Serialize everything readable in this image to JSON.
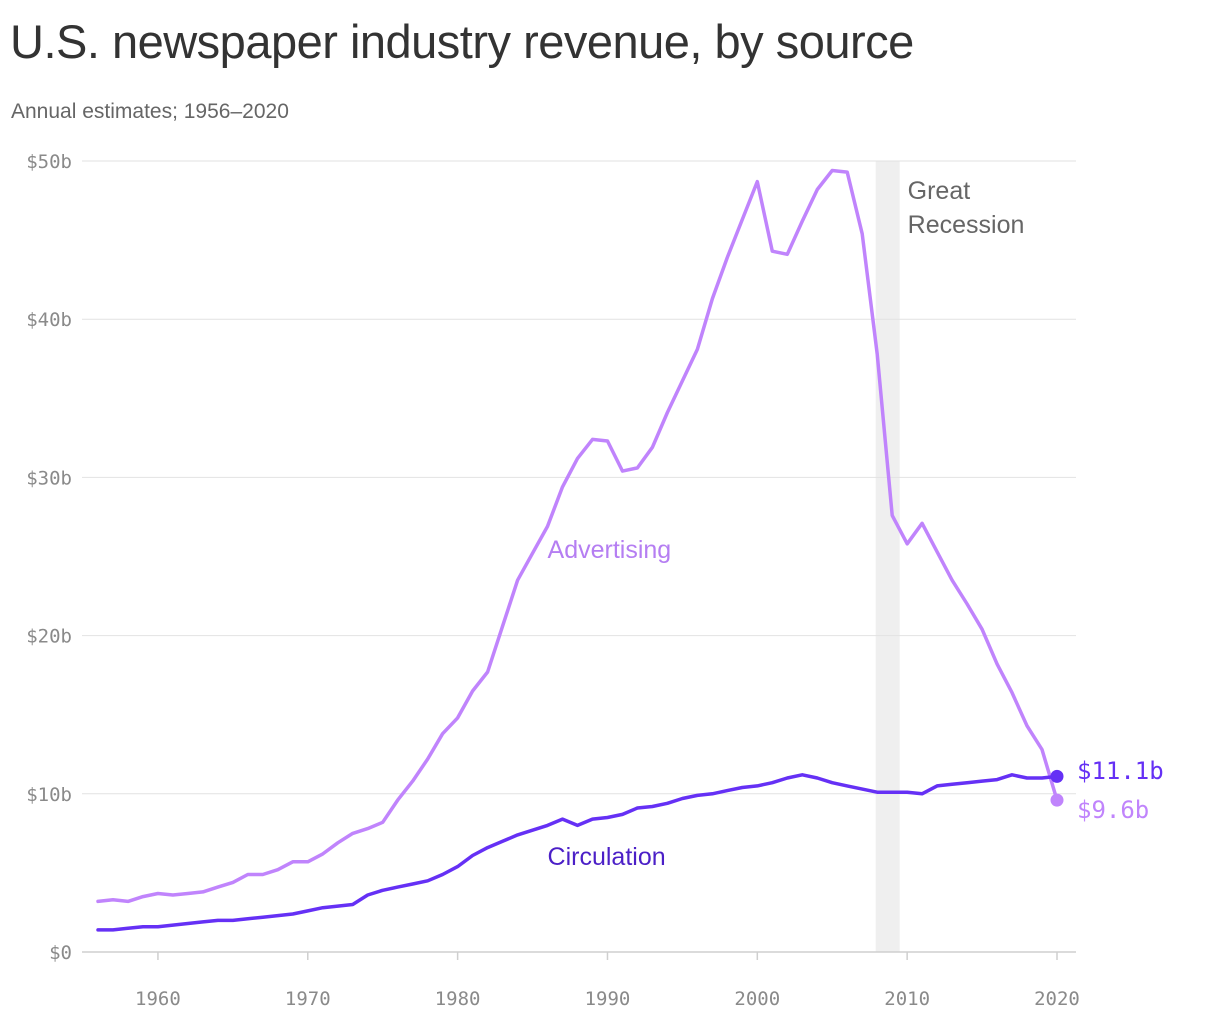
{
  "title": "U.S. newspaper industry revenue, by source",
  "subtitle": "Annual estimates; 1956–2020",
  "colors": {
    "advertising": "#c084fc",
    "advertising_label": "#b57ef2",
    "circulation": "#6530f5",
    "circulation_label": "#4b1fc7",
    "grid": "#e2e2e2",
    "recession_band": "#efefef",
    "recession_label": "#666666",
    "axis_text": "#8a8a8a"
  },
  "chart_data": {
    "type": "line",
    "x": [
      1956,
      1957,
      1958,
      1959,
      1960,
      1961,
      1962,
      1963,
      1964,
      1965,
      1966,
      1967,
      1968,
      1969,
      1970,
      1971,
      1972,
      1973,
      1974,
      1975,
      1976,
      1977,
      1978,
      1979,
      1980,
      1981,
      1982,
      1983,
      1984,
      1985,
      1986,
      1987,
      1988,
      1989,
      1990,
      1991,
      1992,
      1993,
      1994,
      1995,
      1996,
      1997,
      1998,
      1999,
      2000,
      2001,
      2002,
      2003,
      2004,
      2005,
      2006,
      2007,
      2008,
      2009,
      2010,
      2011,
      2012,
      2013,
      2014,
      2015,
      2016,
      2017,
      2018,
      2019,
      2020
    ],
    "series": [
      {
        "name": "Advertising",
        "values": [
          3.2,
          3.3,
          3.2,
          3.5,
          3.7,
          3.6,
          3.7,
          3.8,
          4.1,
          4.4,
          4.9,
          4.9,
          5.2,
          5.7,
          5.7,
          6.2,
          6.9,
          7.5,
          7.8,
          8.2,
          9.6,
          10.8,
          12.2,
          13.8,
          14.8,
          16.5,
          17.7,
          20.6,
          23.5,
          25.2,
          26.9,
          29.4,
          31.2,
          32.4,
          32.3,
          30.4,
          30.6,
          31.9,
          34.1,
          36.1,
          38.1,
          41.3,
          43.9,
          46.3,
          48.7,
          44.3,
          44.1,
          46.2,
          48.2,
          49.4,
          49.3,
          45.4,
          37.8,
          27.6,
          25.8,
          27.1,
          25.3,
          23.5,
          22.0,
          20.4,
          18.2,
          16.4,
          14.3,
          12.8,
          9.6
        ]
      },
      {
        "name": "Circulation",
        "values": [
          1.4,
          1.4,
          1.5,
          1.6,
          1.6,
          1.7,
          1.8,
          1.9,
          2.0,
          2.0,
          2.1,
          2.2,
          2.3,
          2.4,
          2.6,
          2.8,
          2.9,
          3.0,
          3.6,
          3.9,
          4.1,
          4.3,
          4.5,
          4.9,
          5.4,
          6.1,
          6.6,
          7.0,
          7.4,
          7.7,
          8.0,
          8.4,
          8.0,
          8.4,
          8.5,
          8.7,
          9.1,
          9.2,
          9.4,
          9.7,
          9.9,
          10.0,
          10.2,
          10.4,
          10.5,
          10.7,
          11.0,
          11.2,
          11.0,
          10.7,
          10.5,
          10.3,
          10.1,
          10.1,
          10.1,
          10.0,
          10.5,
          10.6,
          10.7,
          10.8,
          10.9,
          11.2,
          11.0,
          11.0,
          11.1
        ]
      }
    ],
    "xlim": [
      1956,
      2020
    ],
    "ylim": [
      0,
      50
    ],
    "x_ticks": [
      1960,
      1970,
      1980,
      1990,
      2000,
      2010,
      2020
    ],
    "x_tick_labels": [
      "1960",
      "1970",
      "1980",
      "1990",
      "2000",
      "2010",
      "2020"
    ],
    "y_ticks": [
      0,
      10,
      20,
      30,
      40,
      50
    ],
    "y_tick_labels": [
      "$0",
      "$10b",
      "$20b",
      "$30b",
      "$40b",
      "$50b"
    ],
    "grid": "horizontal",
    "shaded_region": {
      "x_start": 2007.9,
      "x_end": 2009.5,
      "label_lines": [
        "Great",
        "Recession"
      ]
    },
    "series_labels": [
      {
        "series": "Advertising",
        "text": "Advertising",
        "x": 1986,
        "y": 24.9
      },
      {
        "series": "Circulation",
        "text": "Circulation",
        "x": 1986,
        "y": 5.5
      }
    ],
    "end_labels": [
      {
        "series": "Circulation",
        "text": "$11.1b",
        "value": 11.1
      },
      {
        "series": "Advertising",
        "text": "$9.6b",
        "value": 9.6
      }
    ]
  }
}
